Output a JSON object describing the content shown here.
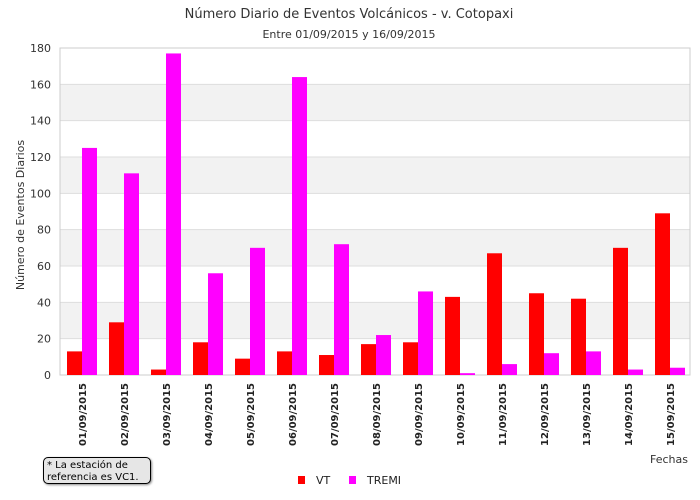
{
  "note": {
    "line1": " * La estación de",
    "line2": "referencia es VC1."
  },
  "chart_data": {
    "type": "bar",
    "title": "Número Diario de Eventos Volcánicos -  v. Cotopaxi",
    "subtitle": "Entre 01/09/2015 y 16/09/2015",
    "xlabel": "Fechas",
    "ylabel": "Número de Eventos Diarios",
    "ylim": [
      0,
      180
    ],
    "yticks": [
      0,
      20,
      40,
      60,
      80,
      100,
      120,
      140,
      160,
      180
    ],
    "grid": "horizontal bands",
    "legend_position": "bottom-center",
    "categories": [
      "01/09/2015",
      "02/09/2015",
      "03/09/2015",
      "04/09/2015",
      "05/09/2015",
      "06/09/2015",
      "07/09/2015",
      "08/09/2015",
      "09/09/2015",
      "10/09/2015",
      "11/09/2015",
      "12/09/2015",
      "13/09/2015",
      "14/09/2015",
      "15/09/2015"
    ],
    "series": [
      {
        "name": "VT",
        "color": "#ff0000",
        "values": [
          13,
          29,
          3,
          18,
          9,
          13,
          11,
          17,
          18,
          43,
          67,
          45,
          42,
          70,
          89
        ]
      },
      {
        "name": "TREMI",
        "color": "#ff00ff",
        "values": [
          125,
          111,
          177,
          56,
          70,
          164,
          72,
          22,
          46,
          1,
          6,
          12,
          13,
          3,
          4
        ]
      }
    ]
  }
}
